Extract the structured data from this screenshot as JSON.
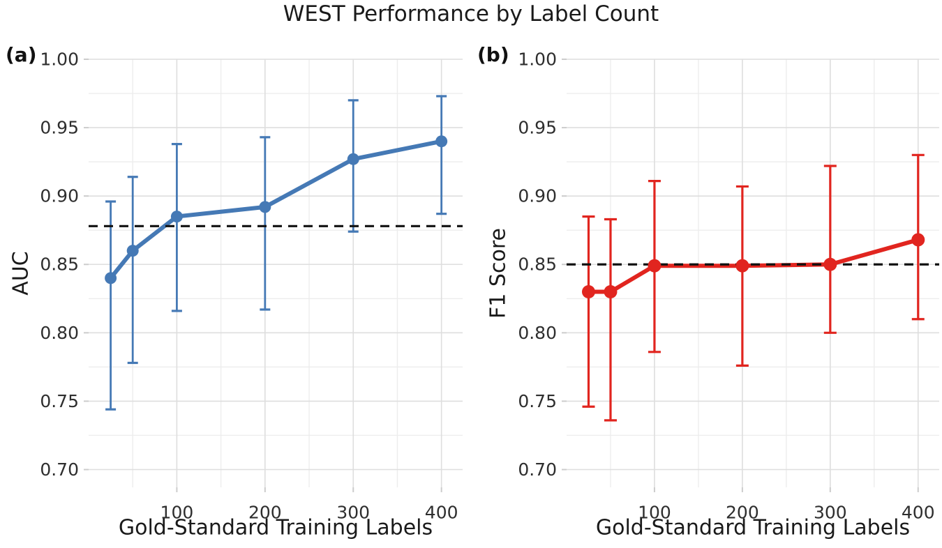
{
  "title": "WEST Performance by Label Count",
  "style": {
    "background": "#ffffff",
    "title_color": "#1a1a1a",
    "tick_label_color": "#2e2e2e",
    "grid_major_color": "#dedede",
    "grid_minor_color": "#ededed",
    "tick_mark_color": "#cccccc",
    "baseline_color": "#111111",
    "panel_a_color": "#4579b5",
    "panel_b_color": "#e1251f"
  },
  "chart_data": [
    {
      "type": "line",
      "panel_tag": "(a)",
      "xlabel": "Gold-Standard Training Labels",
      "ylabel": "AUC",
      "x": [
        25,
        50,
        100,
        200,
        300,
        400
      ],
      "y": [
        0.84,
        0.86,
        0.885,
        0.892,
        0.927,
        0.94
      ],
      "err_low": [
        0.744,
        0.778,
        0.816,
        0.817,
        0.874,
        0.887
      ],
      "err_high": [
        0.896,
        0.914,
        0.938,
        0.943,
        0.97,
        0.973
      ],
      "baseline_dashed": 0.878,
      "series_color": "#4579b5",
      "xlim": [
        0,
        424
      ],
      "ylim": [
        0.687,
        1.0
      ],
      "xticks": [
        100,
        200,
        300,
        400
      ],
      "xtick_labels": [
        "100",
        "200",
        "300",
        "400"
      ],
      "yticks": [
        0.7,
        0.75,
        0.8,
        0.85,
        0.9,
        0.95,
        1.0
      ],
      "ytick_labels": [
        "0.70",
        "0.75",
        "0.80",
        "0.85",
        "0.90",
        "0.95",
        "1.00"
      ],
      "grid": "major+minor, minor at half-step",
      "legend": "none"
    },
    {
      "type": "line",
      "panel_tag": "(b)",
      "xlabel": "Gold-Standard Training Labels",
      "ylabel": "F1 Score",
      "x": [
        25,
        50,
        100,
        200,
        300,
        400
      ],
      "y": [
        0.83,
        0.83,
        0.849,
        0.849,
        0.85,
        0.868
      ],
      "err_low": [
        0.746,
        0.736,
        0.786,
        0.776,
        0.8,
        0.81
      ],
      "err_high": [
        0.885,
        0.883,
        0.911,
        0.907,
        0.922,
        0.93
      ],
      "baseline_dashed": 0.85,
      "series_color": "#e1251f",
      "xlim": [
        0,
        424
      ],
      "ylim": [
        0.687,
        1.0
      ],
      "xticks": [
        100,
        200,
        300,
        400
      ],
      "xtick_labels": [
        "100",
        "200",
        "300",
        "400"
      ],
      "yticks": [
        0.7,
        0.75,
        0.8,
        0.85,
        0.9,
        0.95,
        1.0
      ],
      "ytick_labels": [
        "0.70",
        "0.75",
        "0.80",
        "0.85",
        "0.90",
        "0.95",
        "1.00"
      ],
      "grid": "major+minor, minor at half-step",
      "legend": "none"
    }
  ]
}
